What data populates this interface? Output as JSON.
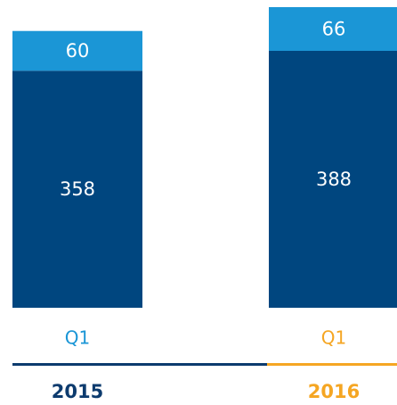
{
  "chart_data": {
    "type": "bar",
    "stacked": true,
    "categories": [
      "Q1",
      "Q1"
    ],
    "groups": [
      "2015",
      "2016"
    ],
    "category_colors": [
      "#1b96d6",
      "#f5a623"
    ],
    "group_colors": [
      "#0d3b6e",
      "#f5a623"
    ],
    "series": [
      {
        "color": "#00467f",
        "values": [
          358,
          388
        ]
      },
      {
        "color": "#1b96d6",
        "values": [
          60,
          66
        ]
      }
    ]
  }
}
